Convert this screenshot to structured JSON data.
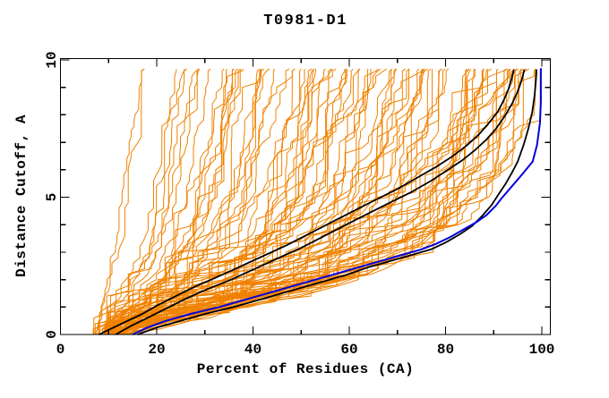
{
  "window": {
    "background": "#ffffff"
  },
  "chart_data": {
    "type": "line",
    "title": "T0981-D1",
    "xlabel": "Percent of Residues (CA)",
    "ylabel": "Distance Cutoff, A",
    "xlim": [
      0,
      101.8
    ],
    "ylim": [
      0,
      10.05
    ],
    "x_major_ticks": [
      0,
      20,
      40,
      60,
      80,
      100
    ],
    "x_minor_tick_step": 10,
    "y_major_ticks": [
      0,
      5,
      10
    ],
    "y_minor_tick_step": 1,
    "grid": false,
    "legend": "none",
    "tick_style": "inward-mirrored",
    "colors": {
      "ensemble": "#f08200",
      "highlight": "#000000",
      "best": "#0000dd",
      "frame": "#000000",
      "background": "#ffffff"
    },
    "series": [
      {
        "name": "black-model-curve-1",
        "color": "#000000",
        "width": 1.8,
        "points": [
          [
            8,
            0
          ],
          [
            11,
            0.25
          ],
          [
            14,
            0.5
          ],
          [
            17,
            0.75
          ],
          [
            20,
            1.05
          ],
          [
            24,
            1.4
          ],
          [
            28,
            1.75
          ],
          [
            32,
            2.05
          ],
          [
            37,
            2.45
          ],
          [
            42,
            2.85
          ],
          [
            47,
            3.25
          ],
          [
            52,
            3.7
          ],
          [
            57,
            4.15
          ],
          [
            62,
            4.6
          ],
          [
            66,
            4.95
          ],
          [
            70,
            5.3
          ],
          [
            74,
            5.7
          ],
          [
            78,
            6.1
          ],
          [
            81.5,
            6.5
          ],
          [
            84.5,
            6.9
          ],
          [
            87,
            7.3
          ],
          [
            89,
            7.7
          ],
          [
            90.8,
            8.1
          ],
          [
            92,
            8.5
          ],
          [
            93,
            8.9
          ],
          [
            93.7,
            9.3
          ],
          [
            94.2,
            9.65
          ]
        ]
      },
      {
        "name": "black-model-curve-2",
        "color": "#000000",
        "width": 1.8,
        "points": [
          [
            11.5,
            0
          ],
          [
            14.5,
            0.3
          ],
          [
            18,
            0.6
          ],
          [
            22,
            0.95
          ],
          [
            26,
            1.3
          ],
          [
            30.5,
            1.65
          ],
          [
            35.5,
            2.0
          ],
          [
            40.5,
            2.4
          ],
          [
            45.5,
            2.8
          ],
          [
            50.5,
            3.2
          ],
          [
            55.5,
            3.65
          ],
          [
            60.5,
            4.1
          ],
          [
            65,
            4.5
          ],
          [
            69,
            4.85
          ],
          [
            73,
            5.2
          ],
          [
            77,
            5.6
          ],
          [
            80.5,
            6.0
          ],
          [
            83.5,
            6.35
          ],
          [
            86,
            6.7
          ],
          [
            88.5,
            7.1
          ],
          [
            90.5,
            7.5
          ],
          [
            92.3,
            7.95
          ],
          [
            93.8,
            8.4
          ],
          [
            95,
            8.85
          ],
          [
            95.8,
            9.25
          ],
          [
            96.4,
            9.65
          ]
        ]
      },
      {
        "name": "black-model-curve-3",
        "color": "#000000",
        "width": 1.8,
        "points": [
          [
            16,
            0
          ],
          [
            20,
            0.25
          ],
          [
            25,
            0.5
          ],
          [
            30,
            0.75
          ],
          [
            36,
            1.0
          ],
          [
            42,
            1.3
          ],
          [
            48,
            1.6
          ],
          [
            53,
            1.85
          ],
          [
            59,
            2.15
          ],
          [
            64,
            2.45
          ],
          [
            69,
            2.7
          ],
          [
            73,
            2.9
          ],
          [
            77,
            3.1
          ],
          [
            80,
            3.35
          ],
          [
            83,
            3.65
          ],
          [
            85.5,
            3.95
          ],
          [
            87.5,
            4.3
          ],
          [
            89.5,
            4.7
          ],
          [
            91,
            5.1
          ],
          [
            92.5,
            5.5
          ],
          [
            93.8,
            5.9
          ],
          [
            95,
            6.3
          ],
          [
            96.2,
            6.9
          ],
          [
            97.2,
            7.5
          ],
          [
            98,
            8.1
          ],
          [
            98.5,
            8.7
          ],
          [
            98.8,
            9.3
          ],
          [
            98.9,
            9.65
          ]
        ]
      },
      {
        "name": "blue-best-model-curve",
        "color": "#0000dd",
        "width": 2,
        "points": [
          [
            15,
            0
          ],
          [
            18,
            0.25
          ],
          [
            22,
            0.5
          ],
          [
            27,
            0.75
          ],
          [
            33,
            1.0
          ],
          [
            39,
            1.3
          ],
          [
            45,
            1.6
          ],
          [
            50,
            1.85
          ],
          [
            56,
            2.15
          ],
          [
            62,
            2.45
          ],
          [
            67,
            2.7
          ],
          [
            71,
            2.9
          ],
          [
            75,
            3.1
          ],
          [
            78,
            3.3
          ],
          [
            81,
            3.55
          ],
          [
            84,
            3.85
          ],
          [
            86.5,
            4.1
          ],
          [
            88.5,
            4.35
          ],
          [
            90.5,
            4.7
          ],
          [
            91.6,
            4.95
          ],
          [
            93.8,
            5.4
          ],
          [
            96,
            5.85
          ],
          [
            98.1,
            6.3
          ],
          [
            99,
            6.9
          ],
          [
            99.6,
            7.7
          ],
          [
            99.8,
            8.5
          ],
          [
            99.8,
            9.7
          ]
        ]
      }
    ],
    "ensemble": {
      "description": "Approximately 95 server-model accuracy curves (orange): percent of CA residues fitting under each distance cutoff; fan out from ~5-18% at cutoff 0 to ~18-100% at cutoff ~9.7",
      "count": 95,
      "seed": 42,
      "q_exponent": 0.75,
      "q_jitter": 0.15,
      "dy": 0.2,
      "y_top": 9.67,
      "x_start_range": [
        5,
        18
      ],
      "x_top_range": [
        17,
        100
      ],
      "left_archetype": [
        [
          7,
          0
        ],
        [
          8.5,
          0.8
        ],
        [
          9.5,
          1.6
        ],
        [
          10.5,
          2.6
        ],
        [
          11.5,
          3.8
        ],
        [
          12.5,
          5.0
        ],
        [
          13.5,
          6.2
        ],
        [
          14.5,
          7.4
        ],
        [
          15.5,
          8.5
        ],
        [
          16.5,
          9.67
        ]
      ],
      "right_archetype": [
        [
          14,
          0
        ],
        [
          22,
          0.35
        ],
        [
          32,
          0.7
        ],
        [
          42,
          1.05
        ],
        [
          52,
          1.45
        ],
        [
          60,
          1.85
        ],
        [
          67,
          2.3
        ],
        [
          73,
          2.8
        ],
        [
          78,
          3.3
        ],
        [
          82,
          3.85
        ],
        [
          85.5,
          4.45
        ],
        [
          88.5,
          5.1
        ],
        [
          91,
          5.8
        ],
        [
          93,
          6.5
        ],
        [
          95,
          7.3
        ],
        [
          96.8,
          8.1
        ],
        [
          98,
          8.9
        ],
        [
          98.8,
          9.67
        ]
      ]
    }
  }
}
